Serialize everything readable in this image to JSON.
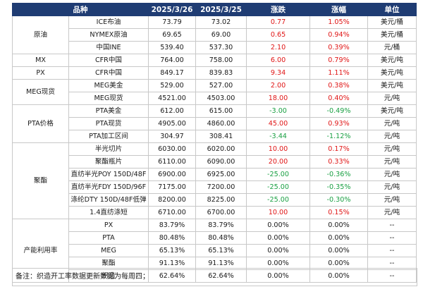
{
  "header": {
    "product": "品种",
    "date1": "2025/3/26",
    "date2": "2025/3/25",
    "change": "涨跌",
    "pct": "涨幅",
    "unit": "单位"
  },
  "groups": [
    {
      "category": "原油",
      "rows": [
        {
          "name": "ICE布油",
          "v1": "73.79",
          "v2": "73.02",
          "chg": "0.77",
          "pct": "1.05%",
          "unit": "美元/桶",
          "dir": "up"
        },
        {
          "name": "NYMEX原油",
          "v1": "69.65",
          "v2": "69.00",
          "chg": "0.65",
          "pct": "0.94%",
          "unit": "美元/桶",
          "dir": "up"
        },
        {
          "name": "中国INE",
          "v1": "539.40",
          "v2": "537.30",
          "chg": "2.10",
          "pct": "0.39%",
          "unit": "元/桶",
          "dir": "up"
        }
      ]
    },
    {
      "category": "MX",
      "rows": [
        {
          "name": "CFR中国",
          "v1": "764.00",
          "v2": "758.00",
          "chg": "6.00",
          "pct": "0.79%",
          "unit": "美元/吨",
          "dir": "up"
        }
      ]
    },
    {
      "category": "PX",
      "rows": [
        {
          "name": "CFR中国",
          "v1": "849.17",
          "v2": "839.83",
          "chg": "9.34",
          "pct": "1.11%",
          "unit": "美元/吨",
          "dir": "up"
        }
      ]
    },
    {
      "category": "MEG现货",
      "rows": [
        {
          "name": "MEG美金",
          "v1": "529.00",
          "v2": "527.00",
          "chg": "2.00",
          "pct": "0.38%",
          "unit": "美元/吨",
          "dir": "up"
        },
        {
          "name": "MEG现货",
          "v1": "4521.00",
          "v2": "4503.00",
          "chg": "18.00",
          "pct": "0.40%",
          "unit": "元/吨",
          "dir": "up"
        }
      ]
    },
    {
      "category": "PTA价格",
      "rows": [
        {
          "name": "PTA美金",
          "v1": "612.00",
          "v2": "615.00",
          "chg": "-3.00",
          "pct": "-0.49%",
          "unit": "美元/吨",
          "dir": "down"
        },
        {
          "name": "PTA现货",
          "v1": "4905.00",
          "v2": "4860.00",
          "chg": "45.00",
          "pct": "0.93%",
          "unit": "元/吨",
          "dir": "up"
        },
        {
          "name": "PTA加工区间",
          "v1": "304.97",
          "v2": "308.41",
          "chg": "-3.44",
          "pct": "-1.12%",
          "unit": "元/吨",
          "dir": "down"
        }
      ]
    },
    {
      "category": "聚酯",
      "rows": [
        {
          "name": "半光切片",
          "v1": "6030.00",
          "v2": "6020.00",
          "chg": "10.00",
          "pct": "0.17%",
          "unit": "元/吨",
          "dir": "up"
        },
        {
          "name": "聚酯瓶片",
          "v1": "6110.00",
          "v2": "6090.00",
          "chg": "20.00",
          "pct": "0.33%",
          "unit": "元/吨",
          "dir": "up"
        },
        {
          "name": "直纺半光POY 150D/48F",
          "v1": "6900.00",
          "v2": "6925.00",
          "chg": "-25.00",
          "pct": "-0.36%",
          "unit": "元/吨",
          "dir": "down"
        },
        {
          "name": "直纺半光FDY 150D/96F",
          "v1": "7175.00",
          "v2": "7200.00",
          "chg": "-25.00",
          "pct": "-0.35%",
          "unit": "元/吨",
          "dir": "down"
        },
        {
          "name": "涤纶DTY 150D/48F低弹",
          "v1": "8200.00",
          "v2": "8225.00",
          "chg": "-25.00",
          "pct": "-0.30%",
          "unit": "元/吨",
          "dir": "down"
        },
        {
          "name": "1.4直纺涤短",
          "v1": "6710.00",
          "v2": "6700.00",
          "chg": "10.00",
          "pct": "0.15%",
          "unit": "元/吨",
          "dir": "up"
        }
      ]
    },
    {
      "category": "产能利用率",
      "rows": [
        {
          "name": "PX",
          "v1": "83.79%",
          "v2": "83.79%",
          "chg": "0.00%",
          "pct": "0.00%",
          "unit": "--",
          "dir": "flat"
        },
        {
          "name": "PTA",
          "v1": "80.48%",
          "v2": "80.48%",
          "chg": "0.00%",
          "pct": "0.00%",
          "unit": "--",
          "dir": "flat"
        },
        {
          "name": "MEG",
          "v1": "65.13%",
          "v2": "65.13%",
          "chg": "0.00%",
          "pct": "0.00%",
          "unit": "--",
          "dir": "flat"
        },
        {
          "name": "聚酯",
          "v1": "91.13%",
          "v2": "91.13%",
          "chg": "0.00%",
          "pct": "0.00%",
          "unit": "--",
          "dir": "flat"
        },
        {
          "name": "织造",
          "v1": "62.64%",
          "v2": "62.64%",
          "chg": "0.00%",
          "pct": "0.00%",
          "unit": "--",
          "dir": "flat"
        }
      ]
    }
  ],
  "note": "备注：织造开工率数据更新数据为每周四；",
  "colors": {
    "header_bg": "#1f3c73",
    "up": "#e01616",
    "down": "#1aa043",
    "border": "#c8c8c8"
  }
}
